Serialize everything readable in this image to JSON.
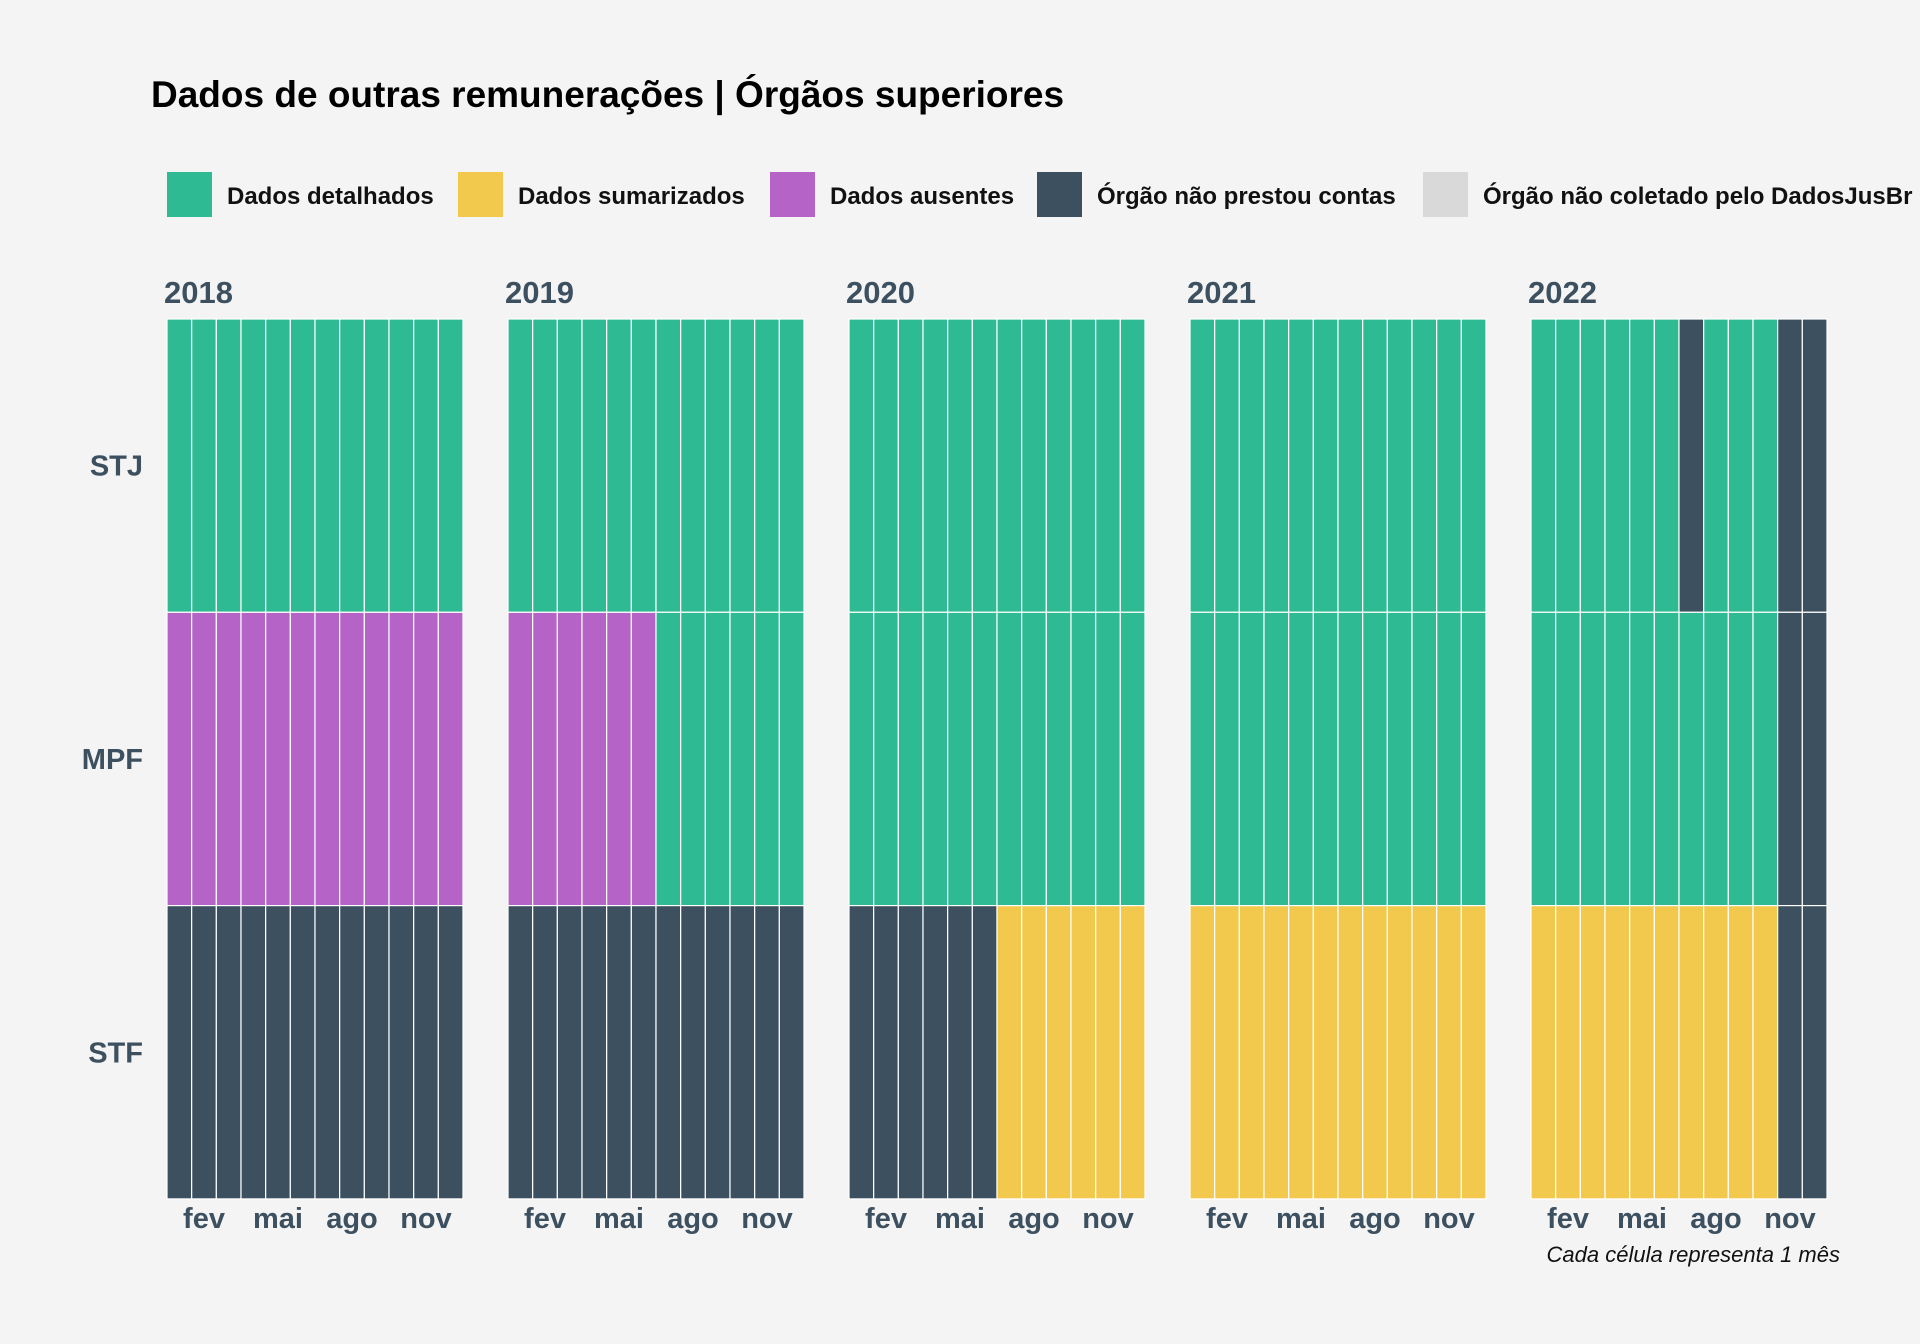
{
  "chart_data": {
    "type": "heatmap",
    "title": "Dados de outras remunerações | Órgãos superiores",
    "caption": "Cada célula representa 1 mês",
    "legend_position": "top",
    "legend": [
      {
        "key": "detalhados",
        "label": "Dados detalhados",
        "color": "#2ebb93"
      },
      {
        "key": "sumarizados",
        "label": "Dados sumarizados",
        "color": "#f2c94c"
      },
      {
        "key": "ausentes",
        "label": "Dados ausentes",
        "color": "#b563c6"
      },
      {
        "key": "nao_prestou",
        "label": "Órgão não prestou contas",
        "color": "#3d5060"
      },
      {
        "key": "nao_coletado",
        "label": "Órgão não coletado pelo DadosJusBr",
        "color": "#d9d9d9"
      }
    ],
    "rows": [
      "STJ",
      "MPF",
      "STF"
    ],
    "x_ticks": [
      {
        "month": 2,
        "label": "fev"
      },
      {
        "month": 5,
        "label": "mai"
      },
      {
        "month": 8,
        "label": "ago"
      },
      {
        "month": 11,
        "label": "nov"
      }
    ],
    "codes": {
      "D": "detalhados",
      "S": "sumarizados",
      "A": "ausentes",
      "N": "nao_prestou",
      "C": "nao_coletado"
    },
    "facets": [
      {
        "year": "2018",
        "status": {
          "STJ": [
            "D",
            "D",
            "D",
            "D",
            "D",
            "D",
            "D",
            "D",
            "D",
            "D",
            "D",
            "D"
          ],
          "MPF": [
            "A",
            "A",
            "A",
            "A",
            "A",
            "A",
            "A",
            "A",
            "A",
            "A",
            "A",
            "A"
          ],
          "STF": [
            "N",
            "N",
            "N",
            "N",
            "N",
            "N",
            "N",
            "N",
            "N",
            "N",
            "N",
            "N"
          ]
        }
      },
      {
        "year": "2019",
        "status": {
          "STJ": [
            "D",
            "D",
            "D",
            "D",
            "D",
            "D",
            "D",
            "D",
            "D",
            "D",
            "D",
            "D"
          ],
          "MPF": [
            "A",
            "A",
            "A",
            "A",
            "A",
            "A",
            "D",
            "D",
            "D",
            "D",
            "D",
            "D"
          ],
          "STF": [
            "N",
            "N",
            "N",
            "N",
            "N",
            "N",
            "N",
            "N",
            "N",
            "N",
            "N",
            "N"
          ]
        }
      },
      {
        "year": "2020",
        "status": {
          "STJ": [
            "D",
            "D",
            "D",
            "D",
            "D",
            "D",
            "D",
            "D",
            "D",
            "D",
            "D",
            "D"
          ],
          "MPF": [
            "D",
            "D",
            "D",
            "D",
            "D",
            "D",
            "D",
            "D",
            "D",
            "D",
            "D",
            "D"
          ],
          "STF": [
            "N",
            "N",
            "N",
            "N",
            "N",
            "N",
            "S",
            "S",
            "S",
            "S",
            "S",
            "S"
          ]
        }
      },
      {
        "year": "2021",
        "status": {
          "STJ": [
            "D",
            "D",
            "D",
            "D",
            "D",
            "D",
            "D",
            "D",
            "D",
            "D",
            "D",
            "D"
          ],
          "MPF": [
            "D",
            "D",
            "D",
            "D",
            "D",
            "D",
            "D",
            "D",
            "D",
            "D",
            "D",
            "D"
          ],
          "STF": [
            "S",
            "S",
            "S",
            "S",
            "S",
            "S",
            "S",
            "S",
            "S",
            "S",
            "S",
            "S"
          ]
        }
      },
      {
        "year": "2022",
        "status": {
          "STJ": [
            "D",
            "D",
            "D",
            "D",
            "D",
            "D",
            "N",
            "D",
            "D",
            "D",
            "N",
            "N"
          ],
          "MPF": [
            "D",
            "D",
            "D",
            "D",
            "D",
            "D",
            "D",
            "D",
            "D",
            "D",
            "N",
            "N"
          ],
          "STF": [
            "S",
            "S",
            "S",
            "S",
            "S",
            "S",
            "S",
            "S",
            "S",
            "S",
            "N",
            "N"
          ]
        }
      }
    ]
  }
}
